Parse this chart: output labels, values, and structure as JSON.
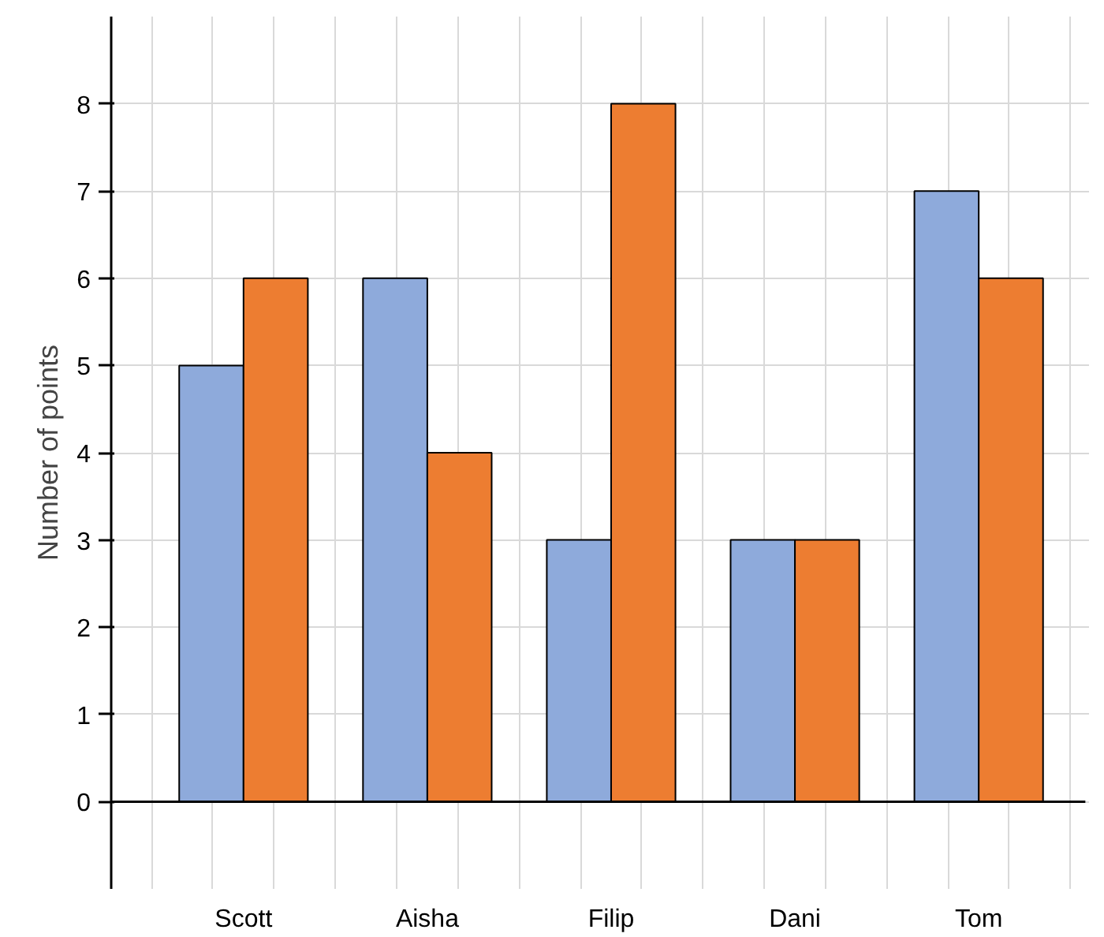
{
  "chart_data": {
    "type": "bar",
    "ylabel": "Number of points",
    "categories": [
      "Scott",
      "Aisha",
      "Filip",
      "Dani",
      "Tom"
    ],
    "series": [
      {
        "color": "#8eaadb",
        "values": [
          5,
          6,
          3,
          3,
          7
        ]
      },
      {
        "color": "#ed7d31",
        "values": [
          6,
          4,
          8,
          3,
          6
        ]
      }
    ],
    "ylim": [
      -1,
      9
    ],
    "yticks": [
      0,
      1,
      2,
      3,
      4,
      5,
      6,
      7,
      8
    ],
    "grid": true
  }
}
